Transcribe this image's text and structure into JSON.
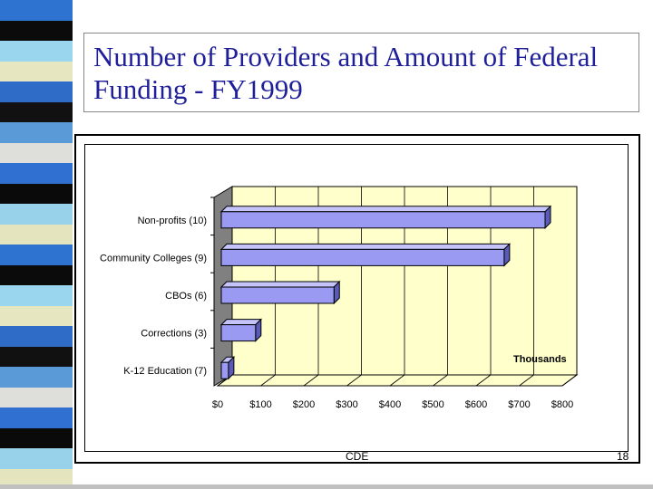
{
  "slide": {
    "title": "Number of Providers and Amount of Federal Funding - FY1999",
    "footer_left": "CDE",
    "footer_right": "18"
  },
  "colors": {
    "bar_face": "#9a9af2",
    "bar_top": "#c4c4fa",
    "bar_side": "#5a5ab8",
    "plot_back": "#ffffcc",
    "plot_wall": "#808080",
    "title_text": "#1f1f9a",
    "stripes": [
      "#2f73d0",
      "#0b0b0b",
      "#9ad6ee",
      "#e6e6c0",
      "#2f6cc8",
      "#111111",
      "#5a9ad6",
      "#dededa",
      "#3070d0",
      "#0a0a0a",
      "#98d2ea",
      "#e4e4be"
    ]
  },
  "chart_data": {
    "type": "bar",
    "orientation": "horizontal",
    "categories": [
      "Non-profits (10)",
      "Community Colleges (9)",
      "CBOs (6)",
      "Corrections (3)",
      "K-12 Education (7)"
    ],
    "values": [
      760,
      665,
      270,
      88,
      25
    ],
    "x_ticks": [
      "$0",
      "$100",
      "$200",
      "$300",
      "$400",
      "$500",
      "$600",
      "$700",
      "$800"
    ],
    "xlim": [
      0,
      800
    ],
    "units_label": "Thousands",
    "grid": true
  }
}
